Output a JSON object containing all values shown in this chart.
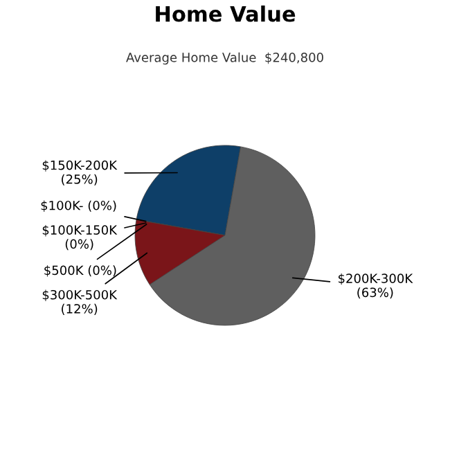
{
  "chart_data": {
    "type": "pie",
    "title": "Home Value",
    "subtitle": "Average Home Value  $240,800",
    "categories": [
      "$150K-200K",
      "$100K-",
      "$100K-150K",
      "$500K",
      "$300K-500K",
      "$200K-300K"
    ],
    "values": [
      25,
      0,
      0,
      0,
      12,
      63
    ],
    "value_labels": [
      "(25%)",
      "(0%)",
      "(0%)",
      "(0%)",
      "(12%)",
      "(63%)"
    ],
    "colors": [
      "#0e3f68",
      "#0e3f68",
      "#0e3f68",
      "#7a1519",
      "#7a1519",
      "#5f5f5f"
    ]
  }
}
